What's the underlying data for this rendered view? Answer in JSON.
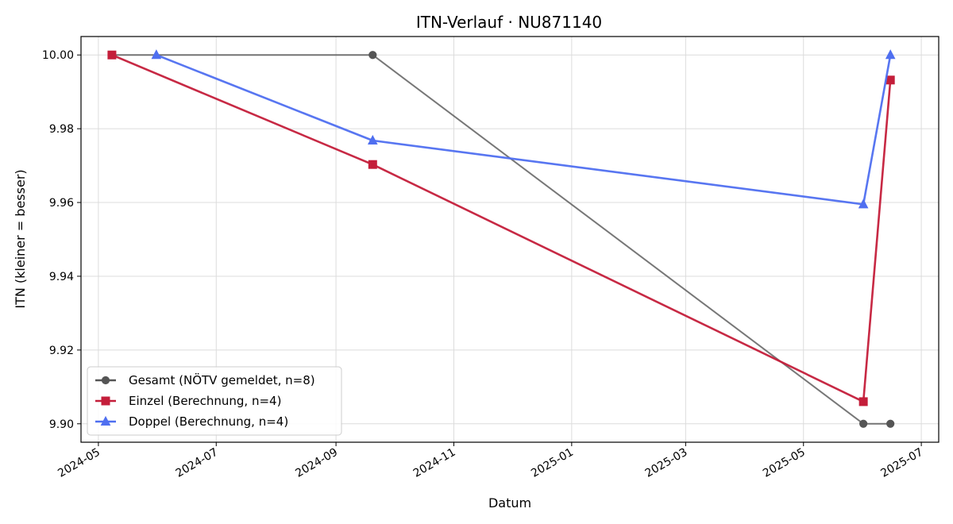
{
  "chart_data": {
    "type": "line",
    "title": "ITN-Verlauf · NU871140",
    "xlabel": "Datum",
    "ylabel": "ITN  (kleiner = besser)",
    "x_axis_type": "date",
    "xlim": [
      "2024-04-22",
      "2025-07-10"
    ],
    "ylim": [
      9.895,
      10.005
    ],
    "x_ticks": [
      "2024-05-01",
      "2024-07-01",
      "2024-09-01",
      "2024-11-01",
      "2025-01-01",
      "2025-03-01",
      "2025-05-01",
      "2025-07-01"
    ],
    "x_tick_labels": [
      "2024-05",
      "2024-07",
      "2024-09",
      "2024-11",
      "2025-01",
      "2025-03",
      "2025-05",
      "2025-07"
    ],
    "y_ticks": [
      9.9,
      9.92,
      9.94,
      9.96,
      9.98,
      10.0
    ],
    "y_tick_labels": [
      "9.90",
      "9.92",
      "9.94",
      "9.96",
      "9.98",
      "10.00"
    ],
    "grid": true,
    "legend_position": "lower-left",
    "series": [
      {
        "name": "Gesamt (NÖTV gemeldet, n=8)",
        "color": "#555555",
        "marker": "circle",
        "points": [
          {
            "x": "2024-05-08",
            "y": 10.0
          },
          {
            "x": "2024-09-20",
            "y": 10.0
          },
          {
            "x": "2025-06-01",
            "y": 9.9
          },
          {
            "x": "2025-06-15",
            "y": 9.9
          }
        ]
      },
      {
        "name": "Einzel (Berechnung, n=4)",
        "color": "#c41e3a",
        "marker": "square",
        "points": [
          {
            "x": "2024-05-08",
            "y": 10.0
          },
          {
            "x": "2024-09-20",
            "y": 9.9703
          },
          {
            "x": "2025-06-01",
            "y": 9.906
          },
          {
            "x": "2025-06-15",
            "y": 9.9932
          }
        ]
      },
      {
        "name": "Doppel (Berechnung, n=4)",
        "color": "#4f6ff0",
        "marker": "triangle",
        "points": [
          {
            "x": "2024-05-31",
            "y": 10.0
          },
          {
            "x": "2024-09-20",
            "y": 9.9768
          },
          {
            "x": "2025-06-01",
            "y": 9.9595
          },
          {
            "x": "2025-06-15",
            "y": 10.0
          }
        ]
      }
    ]
  }
}
